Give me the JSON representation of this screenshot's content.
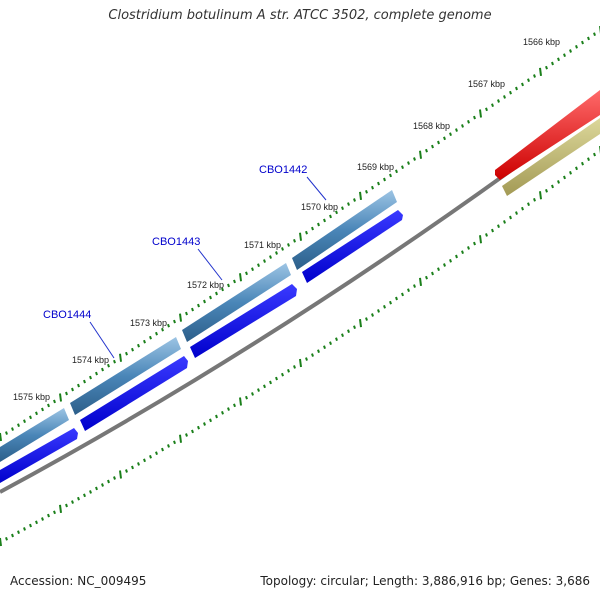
{
  "title": "Clostridium botulinum A str. ATCC 3502, complete genome",
  "footer": {
    "accession": "Accession: NC_009495",
    "summary": "Topology: circular; Length: 3,886,916 bp; Genes: 3,686"
  },
  "scale": {
    "unit": "kbp",
    "labels": [
      "1566 kbp",
      "1567 kbp",
      "1568 kbp",
      "1569 kbp",
      "1570 kbp",
      "1571 kbp",
      "1572 kbp",
      "1573 kbp",
      "1574 kbp",
      "1575 kbp"
    ]
  },
  "genes": [
    {
      "name": "CBO1442",
      "label_color": "#0000cc"
    },
    {
      "name": "CBO1443",
      "label_color": "#0000cc"
    },
    {
      "name": "CBO1444",
      "label_color": "#0000cc"
    }
  ],
  "colors": {
    "cds_light": "#4a86b8",
    "cds_dark": "#0000ee",
    "backbone": "#777777",
    "tick": "#1a7f1a",
    "feature_red": "#ee0000",
    "feature_olive": "#b8b070"
  }
}
